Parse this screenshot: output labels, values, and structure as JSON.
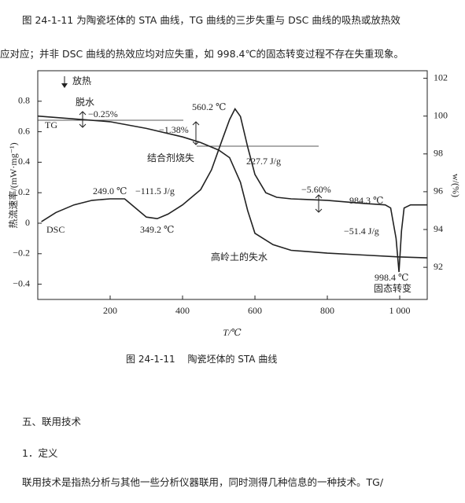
{
  "intro_lines": [
    "图 24-1-11 为陶瓷坯体的 STA 曲线，TG 曲线的三步失重与 DSC 曲线的吸热或放热效",
    "应对应；并非 DSC 曲线的热效应均对应失重，如 998.4℃的固态转变过程不存在失重现象。"
  ],
  "figure": {
    "chart_data": {
      "type": "line",
      "xlabel": "T/℃",
      "ylabel": "热流速率/(mW·mg⁻¹)",
      "y2label": "w/(%)",
      "xlim": [
        0,
        1076
      ],
      "xticks": [
        200,
        400,
        600,
        800,
        {
          "value": 1000,
          "label": "1 000"
        }
      ],
      "ylim": [
        -0.5,
        1.0
      ],
      "yticks": [
        0.8,
        0.6,
        0.4,
        0.2,
        0,
        {
          "value": -0.2,
          "label": "−0.2"
        },
        {
          "value": -0.4,
          "label": "−0.4"
        }
      ],
      "y2lim": [
        90.3,
        102.4
      ],
      "y2ticks": [
        102,
        100,
        98,
        96,
        94,
        92
      ],
      "series": [
        {
          "name": "TG",
          "color": "#222222",
          "axis": "y2",
          "x": [
            0,
            100,
            200,
            300,
            400,
            450,
            500,
            530,
            560,
            580,
            600,
            650,
            700,
            800,
            900,
            1000,
            1075
          ],
          "values": [
            100,
            99.85,
            99.7,
            99.35,
            98.9,
            98.6,
            98.2,
            97.8,
            96.5,
            95,
            93.8,
            93.2,
            92.9,
            92.75,
            92.65,
            92.55,
            92.5
          ]
        },
        {
          "name": "DSC",
          "color": "#222222",
          "x": [
            10,
            50,
            100,
            150,
            200,
            240,
            260,
            300,
            330,
            360,
            400,
            450,
            480,
            510,
            530,
            545,
            560,
            580,
            600,
            630,
            660,
            700,
            800,
            900,
            960,
            975,
            990,
            998,
            1005,
            1012,
            1030,
            1075
          ],
          "values": [
            0.01,
            0.07,
            0.12,
            0.15,
            0.16,
            0.16,
            0.12,
            0.04,
            0.03,
            0.06,
            0.12,
            0.22,
            0.35,
            0.55,
            0.68,
            0.75,
            0.7,
            0.5,
            0.32,
            0.2,
            0.17,
            0.16,
            0.15,
            0.13,
            0.12,
            0.1,
            -0.1,
            -0.32,
            -0.05,
            0.1,
            0.12,
            0.12
          ]
        }
      ],
      "annotations": [
        "放热",
        "脱水",
        "−0.25%",
        "560.2 ℃",
        "−1.38%",
        "TG",
        "结合剂烧失",
        "227.7 J/g",
        "249.0 ℃",
        "−111.5 J/g",
        "−5.60%",
        "984.3 ℃",
        "DSC",
        "349.2 ℃",
        "−51.4 J/g",
        "高岭土的失水",
        "998.4 ℃",
        "固态转变"
      ]
    },
    "caption": "图 24-1-11　 陶瓷坯体的 STA 曲线"
  },
  "section_heading": "五、联用技术",
  "subsection_heading": "1．定义",
  "body_line": "联用技术是指热分析与其他一些分析仪器联用，同时测得几种信息的一种技术。TG/"
}
